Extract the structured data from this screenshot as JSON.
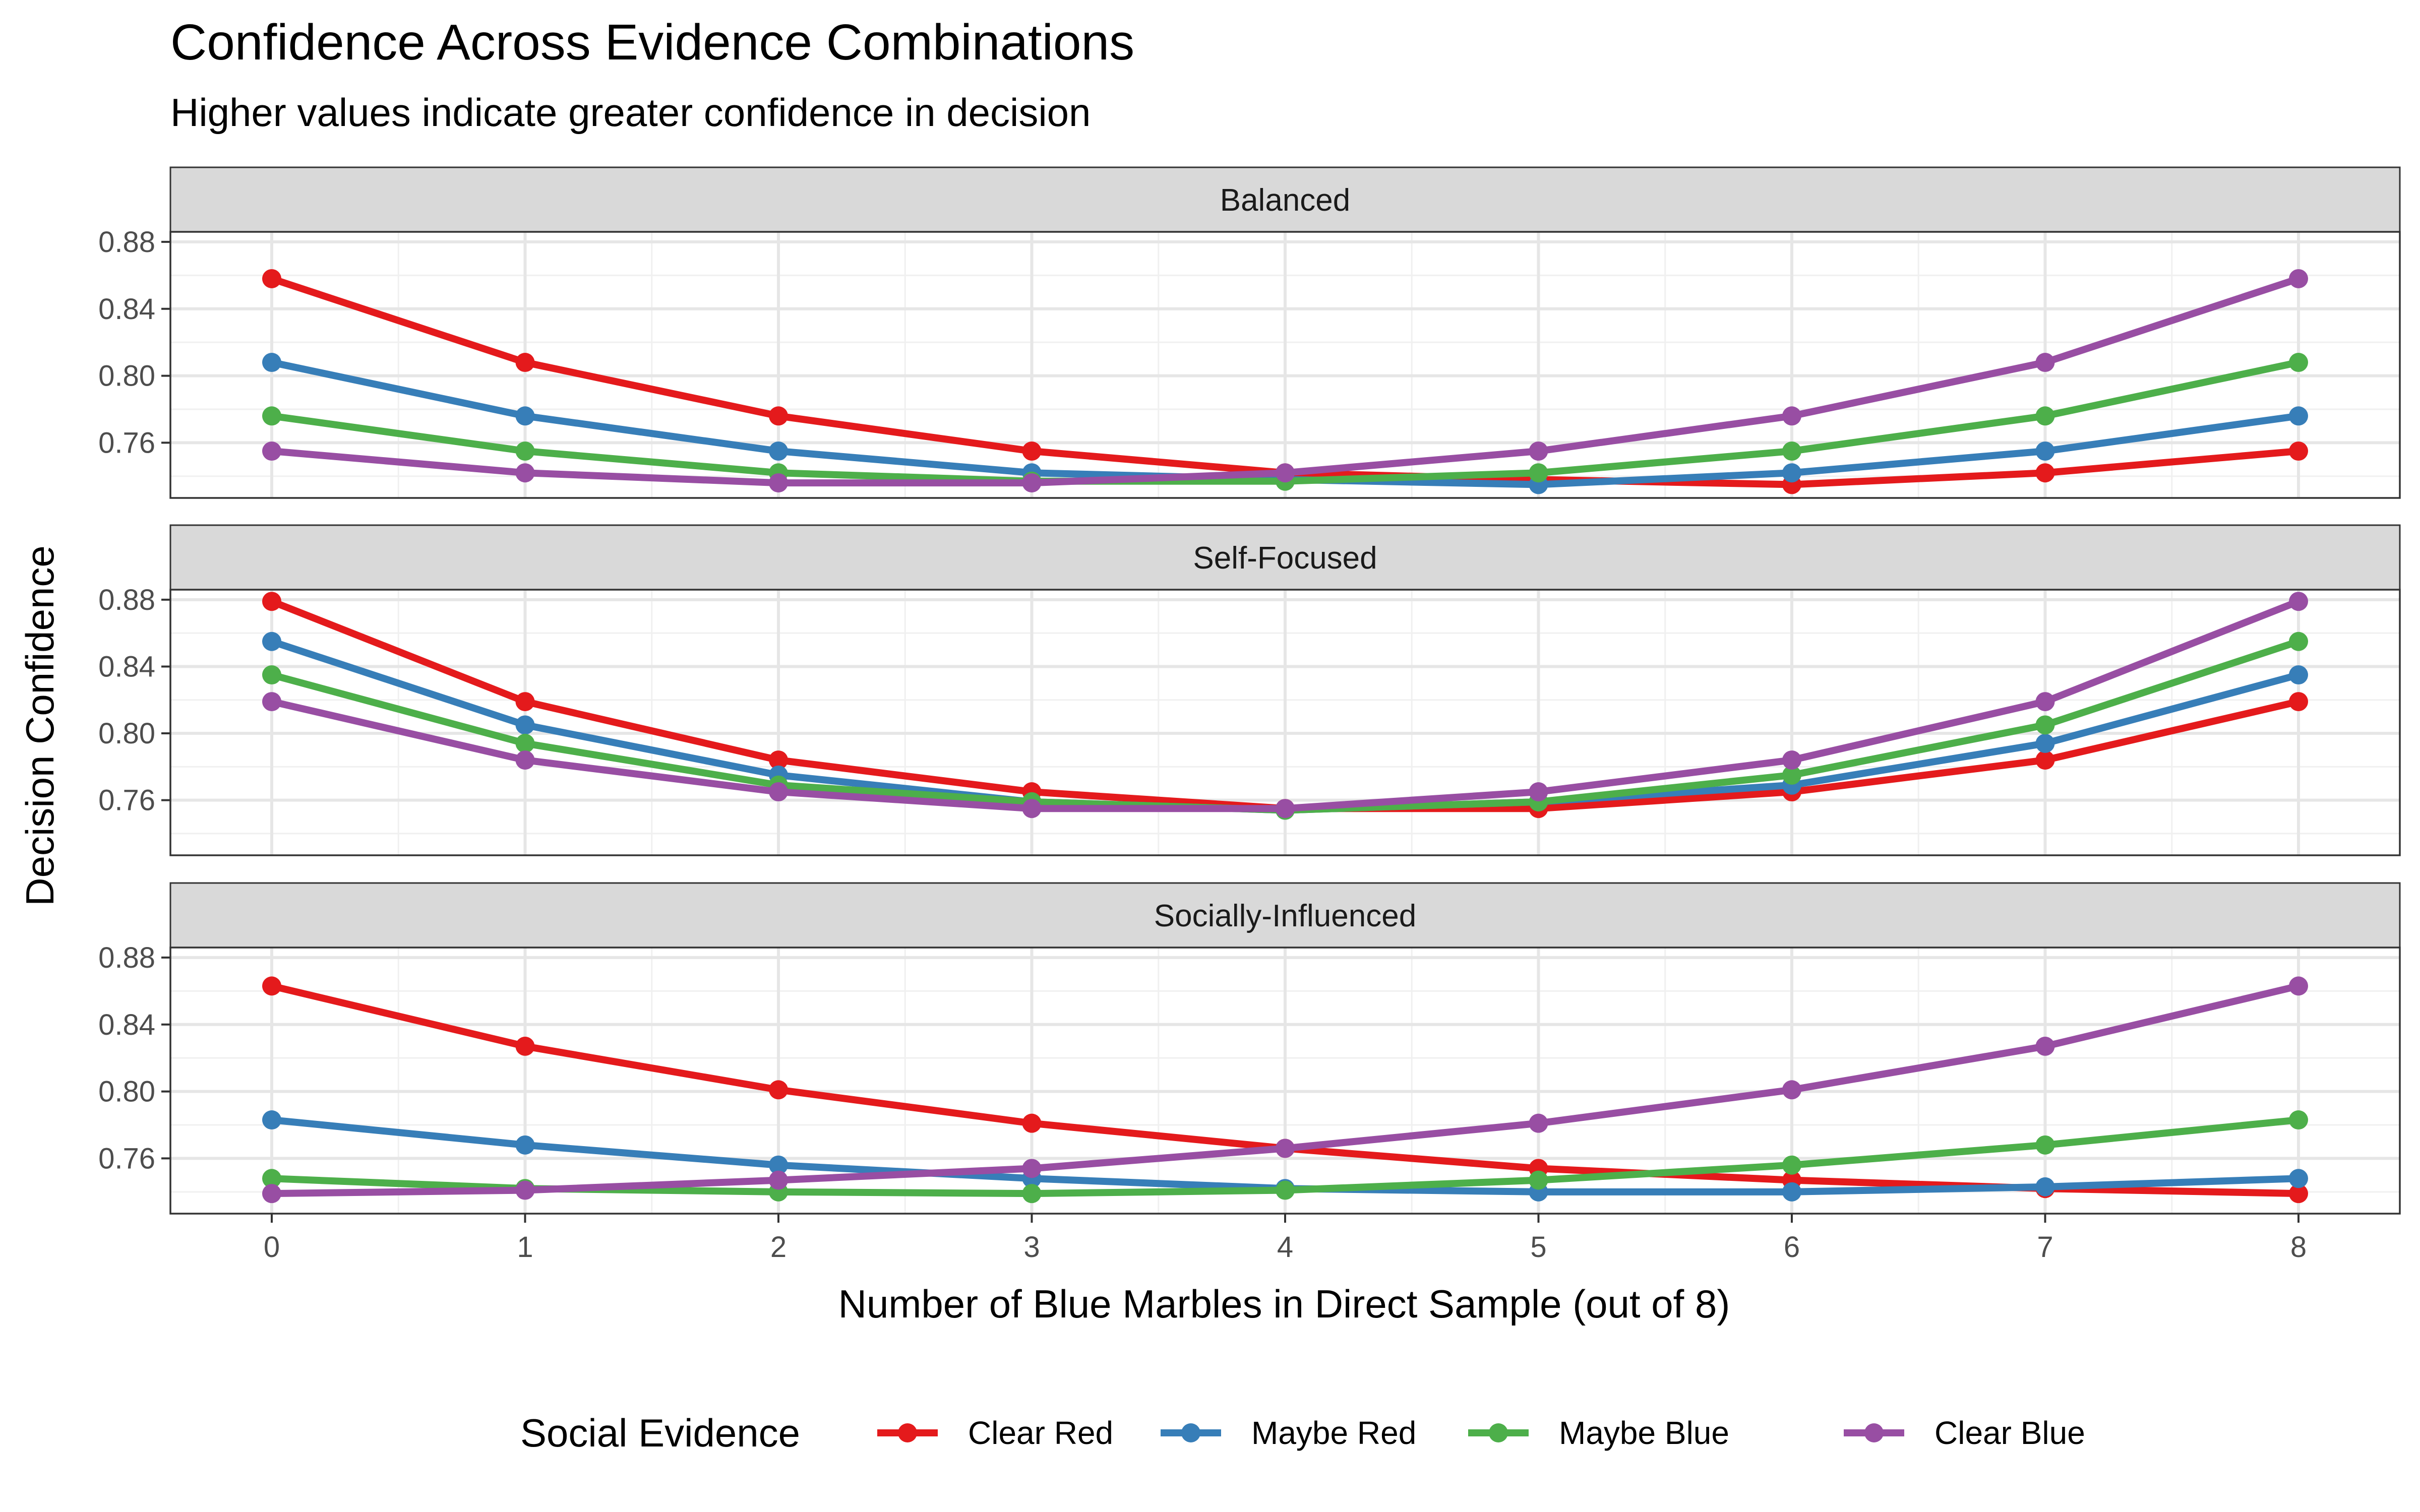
{
  "chart_data": {
    "type": "line",
    "title": "Confidence Across Evidence Combinations",
    "subtitle": "Higher values indicate greater confidence in decision",
    "xlabel": "Number of Blue Marbles in Direct Sample (out of 8)",
    "ylabel": "Decision Confidence",
    "x": [
      0,
      1,
      2,
      3,
      4,
      5,
      6,
      7,
      8
    ],
    "x_ticks": [
      "0",
      "1",
      "2",
      "3",
      "4",
      "5",
      "6",
      "7",
      "8"
    ],
    "y_ticks": [
      "0.76",
      "0.80",
      "0.84",
      "0.88"
    ],
    "xlim": [
      -0.4,
      8.4
    ],
    "ylim": [
      0.727,
      0.886
    ],
    "grid": true,
    "legend": {
      "title": "Social Evidence",
      "placement": "bottom",
      "entries": [
        "Clear Red",
        "Maybe Red",
        "Maybe Blue",
        "Clear Blue"
      ]
    },
    "series_colors": {
      "Clear Red": "#E41A1C",
      "Maybe Red": "#377EB8",
      "Maybe Blue": "#4DAF4A",
      "Clear Blue": "#984EA3"
    },
    "panels": [
      {
        "label": "Balanced",
        "series": [
          {
            "name": "Clear Red",
            "values": [
              0.858,
              0.808,
              0.776,
              0.755,
              0.742,
              0.738,
              0.735,
              0.742,
              0.755
            ]
          },
          {
            "name": "Maybe Red",
            "values": [
              0.808,
              0.776,
              0.755,
              0.742,
              0.738,
              0.735,
              0.742,
              0.755,
              0.776
            ]
          },
          {
            "name": "Maybe Blue",
            "values": [
              0.776,
              0.755,
              0.742,
              0.737,
              0.737,
              0.742,
              0.755,
              0.776,
              0.808
            ]
          },
          {
            "name": "Clear Blue",
            "values": [
              0.755,
              0.742,
              0.736,
              0.736,
              0.742,
              0.755,
              0.776,
              0.808,
              0.858
            ]
          }
        ]
      },
      {
        "label": "Self-Focused",
        "series": [
          {
            "name": "Clear Red",
            "values": [
              0.879,
              0.819,
              0.784,
              0.765,
              0.755,
              0.755,
              0.765,
              0.784,
              0.819
            ]
          },
          {
            "name": "Maybe Red",
            "values": [
              0.855,
              0.805,
              0.775,
              0.759,
              0.754,
              0.759,
              0.769,
              0.794,
              0.835
            ]
          },
          {
            "name": "Maybe Blue",
            "values": [
              0.835,
              0.794,
              0.769,
              0.759,
              0.754,
              0.759,
              0.775,
              0.805,
              0.855
            ]
          },
          {
            "name": "Clear Blue",
            "values": [
              0.819,
              0.784,
              0.765,
              0.755,
              0.755,
              0.765,
              0.784,
              0.819,
              0.879
            ]
          }
        ]
      },
      {
        "label": "Socially-Influenced",
        "series": [
          {
            "name": "Clear Red",
            "values": [
              0.863,
              0.827,
              0.801,
              0.781,
              0.766,
              0.754,
              0.747,
              0.742,
              0.739
            ]
          },
          {
            "name": "Maybe Red",
            "values": [
              0.783,
              0.768,
              0.756,
              0.748,
              0.742,
              0.74,
              0.74,
              0.743,
              0.748
            ]
          },
          {
            "name": "Maybe Blue",
            "values": [
              0.748,
              0.742,
              0.74,
              0.739,
              0.741,
              0.747,
              0.756,
              0.768,
              0.783
            ]
          },
          {
            "name": "Clear Blue",
            "values": [
              0.739,
              0.741,
              0.747,
              0.754,
              0.766,
              0.781,
              0.801,
              0.827,
              0.863
            ]
          }
        ]
      }
    ]
  }
}
